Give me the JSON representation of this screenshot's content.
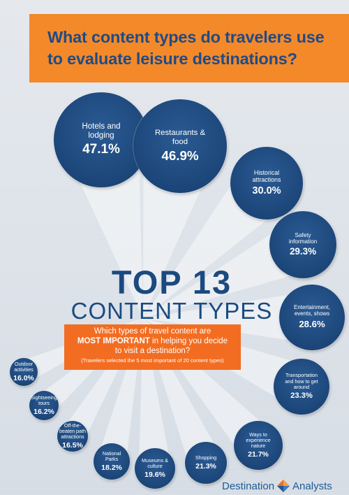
{
  "header": {
    "line1": "What content types do travelers use",
    "line2": "to evaluate leisure destinations?"
  },
  "headline": {
    "title": "TOP 13",
    "subtitle": "CONTENT TYPES"
  },
  "question": {
    "line1": "Which types of travel content are",
    "line2_strong": "MOST IMPORTANT",
    "line2_rest": " in helping you decide",
    "line3": "to visit a destination?",
    "note": "(Travelers selected the 5 most important of 20 content types)"
  },
  "brand": {
    "word1": "Destination",
    "word2": "Analysts",
    "icon": "diamond-logo-icon"
  },
  "colors": {
    "circle": "#1c4679",
    "header_bg": "#f4892a",
    "header_text": "#1f4b86",
    "question_bg": "#f26d22",
    "headline": "#1b4a80",
    "background": "#d9dfe6"
  },
  "chart_data": {
    "type": "bubble",
    "unit": "%",
    "categories": [
      "Hotels and lodging",
      "Restaurants & food",
      "Historical attractions",
      "Safety information",
      "Entertainment, events, shows",
      "Transportation and how to get around",
      "Ways to experience nature",
      "Shopping",
      "Museums & culture",
      "National Parks",
      "Off-the-beaten path attractions",
      "Sightseeing tours",
      "Outdoor activities"
    ],
    "values": [
      47.1,
      46.9,
      30.0,
      29.3,
      28.6,
      23.3,
      21.7,
      21.3,
      19.6,
      18.2,
      16.5,
      16.2,
      16.0
    ],
    "value_labels": [
      "47.1%",
      "46.9%",
      "30.0%",
      "29.3%",
      "28.6%",
      "23.3%",
      "21.7%",
      "21.3%",
      "19.6%",
      "18.2%",
      "16.5%",
      "16.2%",
      "16.0%"
    ],
    "label_lines": [
      [
        "Hotels and",
        "lodging"
      ],
      [
        "Restaurants &",
        "food"
      ],
      [
        "Historical",
        "attractions"
      ],
      [
        "Safety",
        "information"
      ],
      [
        "Entertainment,",
        "events, shows"
      ],
      [
        "Transportation",
        "and how to get",
        "around"
      ],
      [
        "Ways to",
        "experience",
        "nature"
      ],
      [
        "Shopping"
      ],
      [
        "Museums &",
        "culture"
      ],
      [
        "National",
        "Parks"
      ],
      [
        "Off-the-",
        "beaten path",
        "attractions"
      ],
      [
        "Sightseeing",
        "tours"
      ],
      [
        "Outdoor",
        "activities"
      ]
    ]
  }
}
